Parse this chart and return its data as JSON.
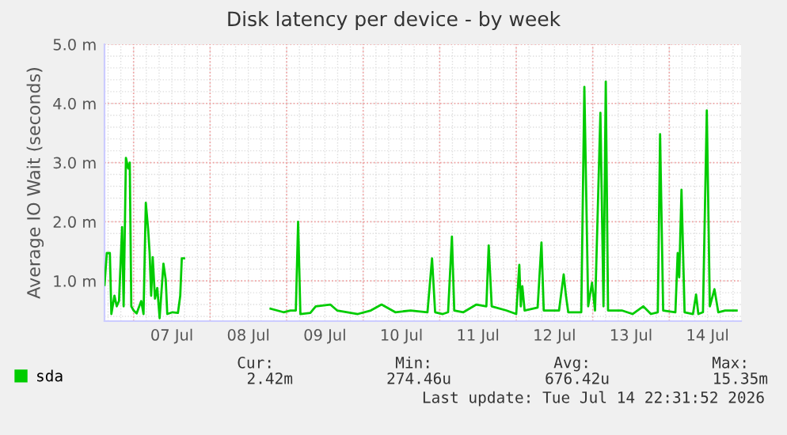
{
  "chart_data": {
    "type": "line",
    "title": "Disk latency per device - by week",
    "ylabel": "Average IO Wait (seconds)",
    "x": [
      "2026-07-06T14:53",
      "2026-07-06T15:36",
      "2026-07-06T16:34",
      "2026-07-06T17:02",
      "2026-07-06T18:00",
      "2026-07-06T18:43",
      "2026-07-06T19:26",
      "2026-07-06T20:24",
      "2026-07-06T20:53",
      "2026-07-06T21:36",
      "2026-07-06T22:19",
      "2026-07-06T22:48",
      "2026-07-06T23:17",
      "2026-07-07T00:00",
      "2026-07-07T00:58",
      "2026-07-07T02:24",
      "2026-07-07T03:07",
      "2026-07-07T03:50",
      "2026-07-07T04:34",
      "2026-07-07T05:02",
      "2026-07-07T05:31",
      "2026-07-07T06:00",
      "2026-07-07T06:43",
      "2026-07-07T07:26",
      "2026-07-07T08:10",
      "2026-07-07T09:22",
      "2026-07-07T10:05",
      "2026-07-07T10:34",
      "2026-07-07T12:14",
      "2026-07-07T13:55",
      "2026-07-07T14:38",
      "2026-07-07T15:07",
      "2026-07-07T15:50",
      "2026-07-08T04:48",
      "2026-07-08T18:58",
      "2026-07-08T23:02",
      "2026-07-09T01:12",
      "2026-07-09T02:53",
      "2026-07-09T03:36",
      "2026-07-09T04:19",
      "2026-07-09T07:26",
      "2026-07-09T09:07",
      "2026-07-09T13:41",
      "2026-07-09T15:50",
      "2026-07-09T22:19",
      "2026-07-10T02:24",
      "2026-07-10T05:46",
      "2026-07-10T10:05",
      "2026-07-10T14:53",
      "2026-07-10T20:10",
      "2026-07-10T21:36",
      "2026-07-10T22:34",
      "2026-07-11T00:58",
      "2026-07-11T02:38",
      "2026-07-11T03:50",
      "2026-07-11T04:34",
      "2026-07-11T07:26",
      "2026-07-11T11:31",
      "2026-07-11T14:38",
      "2026-07-11T15:22",
      "2026-07-11T16:19",
      "2026-07-11T20:53",
      "2026-07-12T00:00",
      "2026-07-12T00:58",
      "2026-07-12T01:26",
      "2026-07-12T01:55",
      "2026-07-12T02:38",
      "2026-07-12T06:43",
      "2026-07-12T07:55",
      "2026-07-12T08:38",
      "2026-07-12T13:26",
      "2026-07-12T14:53",
      "2026-07-12T15:36",
      "2026-07-12T16:19",
      "2026-07-12T20:24",
      "2026-07-12T21:22",
      "2026-07-12T22:34",
      "2026-07-12T23:46",
      "2026-07-13T00:43",
      "2026-07-13T02:24",
      "2026-07-13T03:22",
      "2026-07-13T04:05",
      "2026-07-13T04:48",
      "2026-07-13T09:07",
      "2026-07-13T12:29",
      "2026-07-13T15:50",
      "2026-07-13T18:14",
      "2026-07-13T20:24",
      "2026-07-13T21:07",
      "2026-07-13T22:05",
      "2026-07-14T01:55",
      "2026-07-14T02:38",
      "2026-07-14T03:07",
      "2026-07-14T03:50",
      "2026-07-14T04:48",
      "2026-07-14T07:26",
      "2026-07-14T08:24",
      "2026-07-14T09:07",
      "2026-07-14T10:34",
      "2026-07-14T11:46",
      "2026-07-14T12:43",
      "2026-07-14T14:10",
      "2026-07-14T15:22",
      "2026-07-14T17:31",
      "2026-07-14T21:07"
    ],
    "series": [
      {
        "name": "sda",
        "color": "#00cc00",
        "values": [
          0.93,
          1.47,
          1.47,
          0.44,
          0.75,
          0.57,
          0.66,
          1.91,
          0.57,
          3.08,
          2.9,
          3.0,
          0.57,
          0.5,
          0.45,
          0.66,
          0.44,
          2.32,
          1.87,
          1.47,
          0.75,
          1.4,
          0.7,
          0.88,
          0.37,
          1.29,
          1.02,
          0.44,
          0.47,
          0.46,
          0.75,
          1.38,
          1.38,
          null,
          0.53,
          0.47,
          0.5,
          0.5,
          2.0,
          0.44,
          0.46,
          0.57,
          0.6,
          0.5,
          0.44,
          0.5,
          0.6,
          0.47,
          0.5,
          0.47,
          1.38,
          0.47,
          0.44,
          0.47,
          1.75,
          0.5,
          0.47,
          0.6,
          0.57,
          1.6,
          0.57,
          0.5,
          0.44,
          1.27,
          0.57,
          0.91,
          0.5,
          0.55,
          1.65,
          0.5,
          0.5,
          1.11,
          0.75,
          0.47,
          0.47,
          4.28,
          0.57,
          0.97,
          0.5,
          3.84,
          0.57,
          4.37,
          0.5,
          0.5,
          0.44,
          0.57,
          0.44,
          0.47,
          3.48,
          0.5,
          0.47,
          1.47,
          1.06,
          2.54,
          0.47,
          0.44,
          0.77,
          0.44,
          0.47,
          3.88,
          0.57,
          0.86,
          0.47,
          0.5,
          0.5
        ]
      }
    ],
    "xlim": [
      "2026-07-06T14:53",
      "2026-07-14T22:31"
    ],
    "xticks": [
      {
        "value": "2026-07-07T12:00",
        "label": "07 Jul"
      },
      {
        "value": "2026-07-08T12:00",
        "label": "08 Jul"
      },
      {
        "value": "2026-07-09T12:00",
        "label": "09 Jul"
      },
      {
        "value": "2026-07-10T12:00",
        "label": "10 Jul"
      },
      {
        "value": "2026-07-11T12:00",
        "label": "11 Jul"
      },
      {
        "value": "2026-07-12T12:00",
        "label": "12 Jul"
      },
      {
        "value": "2026-07-13T12:00",
        "label": "13 Jul"
      },
      {
        "value": "2026-07-14T12:00",
        "label": "14 Jul"
      }
    ],
    "ylim": [
      0.32,
      5.0
    ],
    "yticks": [
      {
        "value": 1,
        "label": "1.0 m"
      },
      {
        "value": 2,
        "label": "2.0 m"
      },
      {
        "value": 3,
        "label": "3.0 m"
      },
      {
        "value": 4,
        "label": "4.0 m"
      },
      {
        "value": 5,
        "label": "5.0 m"
      }
    ],
    "grid": true,
    "legend": "bottom",
    "marker": "none",
    "line_style": "solid",
    "annotations": [
      "Cur:",
      "2.42m",
      "Min:",
      "274.46u",
      "Avg:",
      "676.42u",
      "Max:",
      "15.35m",
      "Last update: Tue Jul 14 22:31:52 2026"
    ]
  }
}
